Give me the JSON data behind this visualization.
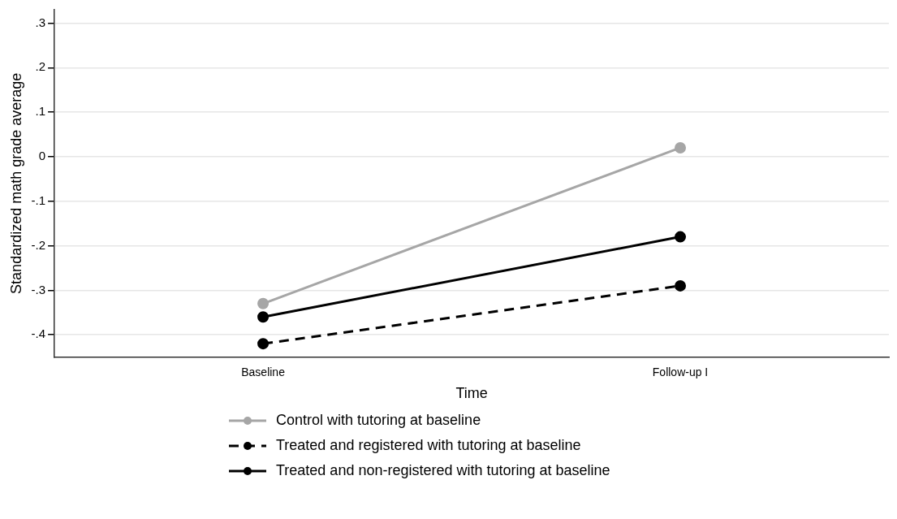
{
  "chart_data": {
    "type": "line",
    "xlabel": "Time",
    "ylabel": "Standardized math grade average",
    "categories": [
      "Baseline",
      "Follow-up I"
    ],
    "series": [
      {
        "name": "Control with tutoring at baseline",
        "color": "#a6a6a6",
        "values": [
          -0.33,
          0.02
        ],
        "line_style": "solid"
      },
      {
        "name": "Treated and registered with tutoring at baseline",
        "color": "#000000",
        "values": [
          -0.42,
          -0.29
        ],
        "line_style": "dashed"
      },
      {
        "name": "Treated and non-registered with tutoring at baseline",
        "color": "#000000",
        "values": [
          -0.36,
          -0.18
        ],
        "line_style": "solid"
      }
    ],
    "ylim": [
      -0.45,
      0.33
    ],
    "yticks": [
      {
        "value": -0.4,
        "label": "-.4"
      },
      {
        "value": -0.3,
        "label": "-.3"
      },
      {
        "value": -0.2,
        "label": "-.2"
      },
      {
        "value": -0.1,
        "label": "-.1"
      },
      0,
      {
        "value": 0.1,
        "label": ".1"
      },
      {
        "value": 0.2,
        "label": ".2"
      },
      {
        "value": 0.3,
        "label": ".3"
      }
    ],
    "grid": "y",
    "legend": "bottom",
    "marker": "circle"
  }
}
